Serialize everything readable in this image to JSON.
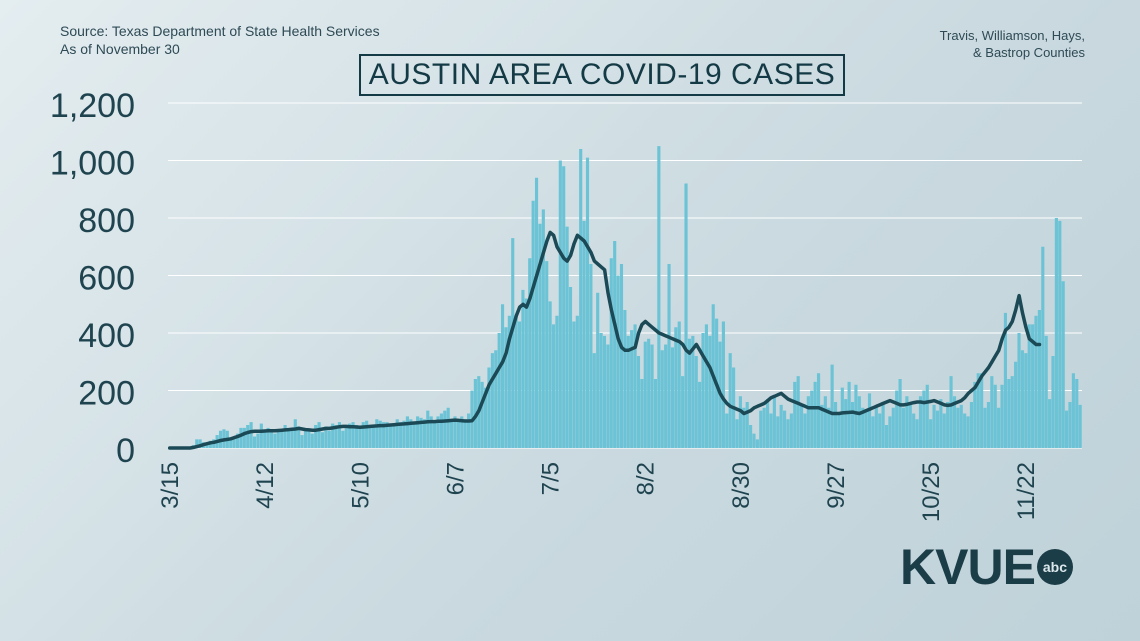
{
  "header": {
    "source_line1": "Source: Texas Department of State Health Services",
    "source_line2": "As of November 30",
    "region_line1": "Travis, Williamson, Hays,",
    "region_line2": "& Bastrop Counties"
  },
  "logo": {
    "text": "KVUE",
    "badge": "abc"
  },
  "colors": {
    "bars": "#6cc3d5",
    "line": "#1b4a56",
    "axis_text": "#1f4450",
    "grid": "#ffffff"
  },
  "chart_data": {
    "type": "bar",
    "title": "AUSTIN AREA COVID-19 CASES",
    "xlabel": "",
    "ylabel": "",
    "ylim": [
      0,
      1200
    ],
    "yticks": [
      "0",
      "200",
      "400",
      "600",
      "800",
      "1,000",
      "1,200"
    ],
    "ytick_values": [
      0,
      200,
      400,
      600,
      800,
      1000,
      1200
    ],
    "xticks": [
      "3/15",
      "4/12",
      "5/10",
      "6/7",
      "7/5",
      "8/2",
      "8/30",
      "9/27",
      "10/25",
      "11/22"
    ],
    "x_start": "3/15",
    "x_end": "11/30",
    "grid": true,
    "series": [
      {
        "type": "bar",
        "values": [
          0,
          0,
          0,
          0,
          0,
          0,
          0,
          10,
          30,
          30,
          20,
          15,
          25,
          30,
          45,
          60,
          65,
          60,
          30,
          40,
          50,
          70,
          70,
          80,
          90,
          40,
          50,
          85,
          60,
          70,
          55,
          50,
          60,
          60,
          80,
          60,
          70,
          100,
          75,
          45,
          60,
          65,
          50,
          80,
          90,
          55,
          75,
          60,
          85,
          80,
          90,
          60,
          70,
          85,
          90,
          80,
          75,
          90,
          95,
          70,
          80,
          100,
          95,
          90,
          90,
          80,
          85,
          100,
          90,
          95,
          110,
          100,
          90,
          110,
          105,
          100,
          130,
          110,
          95,
          110,
          120,
          130,
          140,
          100,
          110,
          95,
          110,
          100,
          120,
          200,
          240,
          250,
          230,
          210,
          280,
          330,
          340,
          400,
          500,
          420,
          460,
          730,
          460,
          440,
          550,
          520,
          660,
          860,
          940,
          780,
          830,
          650,
          510,
          430,
          460,
          1000,
          980,
          770,
          560,
          440,
          460,
          1040,
          790,
          1010,
          640,
          330,
          540,
          400,
          390,
          360,
          660,
          720,
          600,
          640,
          480,
          390,
          410,
          430,
          320,
          240,
          370,
          380,
          360,
          240,
          1050,
          340,
          360,
          640,
          350,
          420,
          440,
          250,
          920,
          380,
          390,
          320,
          230,
          400,
          430,
          390,
          500,
          450,
          370,
          440,
          120,
          330,
          280,
          100,
          180,
          140,
          160,
          80,
          50,
          30,
          130,
          140,
          170,
          120,
          180,
          110,
          150,
          130,
          100,
          120,
          230,
          250,
          150,
          120,
          180,
          200,
          230,
          260,
          150,
          180,
          140,
          290,
          160,
          120,
          210,
          170,
          230,
          160,
          220,
          180,
          140,
          130,
          190,
          110,
          150,
          120,
          160,
          80,
          110,
          140,
          200,
          240,
          140,
          180,
          160,
          120,
          100,
          180,
          200,
          220,
          100,
          150,
          130,
          170,
          120,
          160,
          250,
          180,
          140,
          150,
          120,
          110,
          160,
          230,
          260,
          260,
          140,
          160,
          250,
          220,
          140,
          220,
          470,
          240,
          250,
          300,
          400,
          340,
          330,
          430,
          430,
          460,
          480,
          700,
          390,
          170,
          320,
          800,
          790,
          580,
          130,
          160,
          260,
          240,
          150
        ]
      },
      {
        "type": "line",
        "values": [
          0,
          0,
          0,
          0,
          0,
          0,
          0,
          2,
          5,
          8,
          12,
          15,
          18,
          20,
          23,
          26,
          28,
          30,
          32,
          36,
          40,
          45,
          50,
          54,
          57,
          58,
          58,
          58,
          59,
          60,
          60,
          60,
          61,
          62,
          63,
          64,
          65,
          66,
          68,
          66,
          64,
          63,
          62,
          62,
          64,
          66,
          68,
          68,
          70,
          72,
          74,
          75,
          75,
          74,
          74,
          73,
          72,
          73,
          74,
          75,
          76,
          77,
          78,
          78,
          79,
          80,
          81,
          82,
          83,
          84,
          85,
          86,
          87,
          88,
          89,
          90,
          91,
          92,
          92,
          93,
          93,
          94,
          95,
          96,
          97,
          96,
          95,
          94,
          94,
          95,
          110,
          130,
          160,
          190,
          220,
          240,
          260,
          280,
          300,
          330,
          380,
          420,
          460,
          490,
          500,
          490,
          520,
          560,
          600,
          640,
          680,
          720,
          750,
          740,
          700,
          680,
          660,
          650,
          670,
          710,
          740,
          730,
          720,
          700,
          680,
          650,
          640,
          630,
          620,
          540,
          480,
          430,
          380,
          350,
          340,
          340,
          345,
          350,
          400,
          430,
          440,
          430,
          420,
          410,
          400,
          395,
          390,
          385,
          380,
          375,
          370,
          360,
          340,
          330,
          345,
          360,
          340,
          320,
          300,
          280,
          250,
          220,
          190,
          170,
          155,
          145,
          140,
          135,
          130,
          120,
          125,
          130,
          140,
          145,
          150,
          155,
          165,
          175,
          180,
          185,
          190,
          180,
          170,
          165,
          160,
          155,
          150,
          145,
          140,
          140,
          140,
          140,
          135,
          130,
          125,
          120,
          120,
          120,
          122,
          123,
          124,
          125,
          122,
          120,
          125,
          130,
          135,
          140,
          145,
          150,
          155,
          160,
          165,
          160,
          155,
          150,
          150,
          152,
          155,
          158,
          160,
          160,
          158,
          160,
          162,
          165,
          160,
          155,
          150,
          148,
          150,
          155,
          160,
          165,
          175,
          190,
          200,
          210,
          230,
          250,
          265,
          280,
          300,
          320,
          340,
          380,
          410,
          420,
          440,
          480,
          530,
          470,
          420,
          380,
          370,
          360,
          360
        ]
      }
    ]
  }
}
